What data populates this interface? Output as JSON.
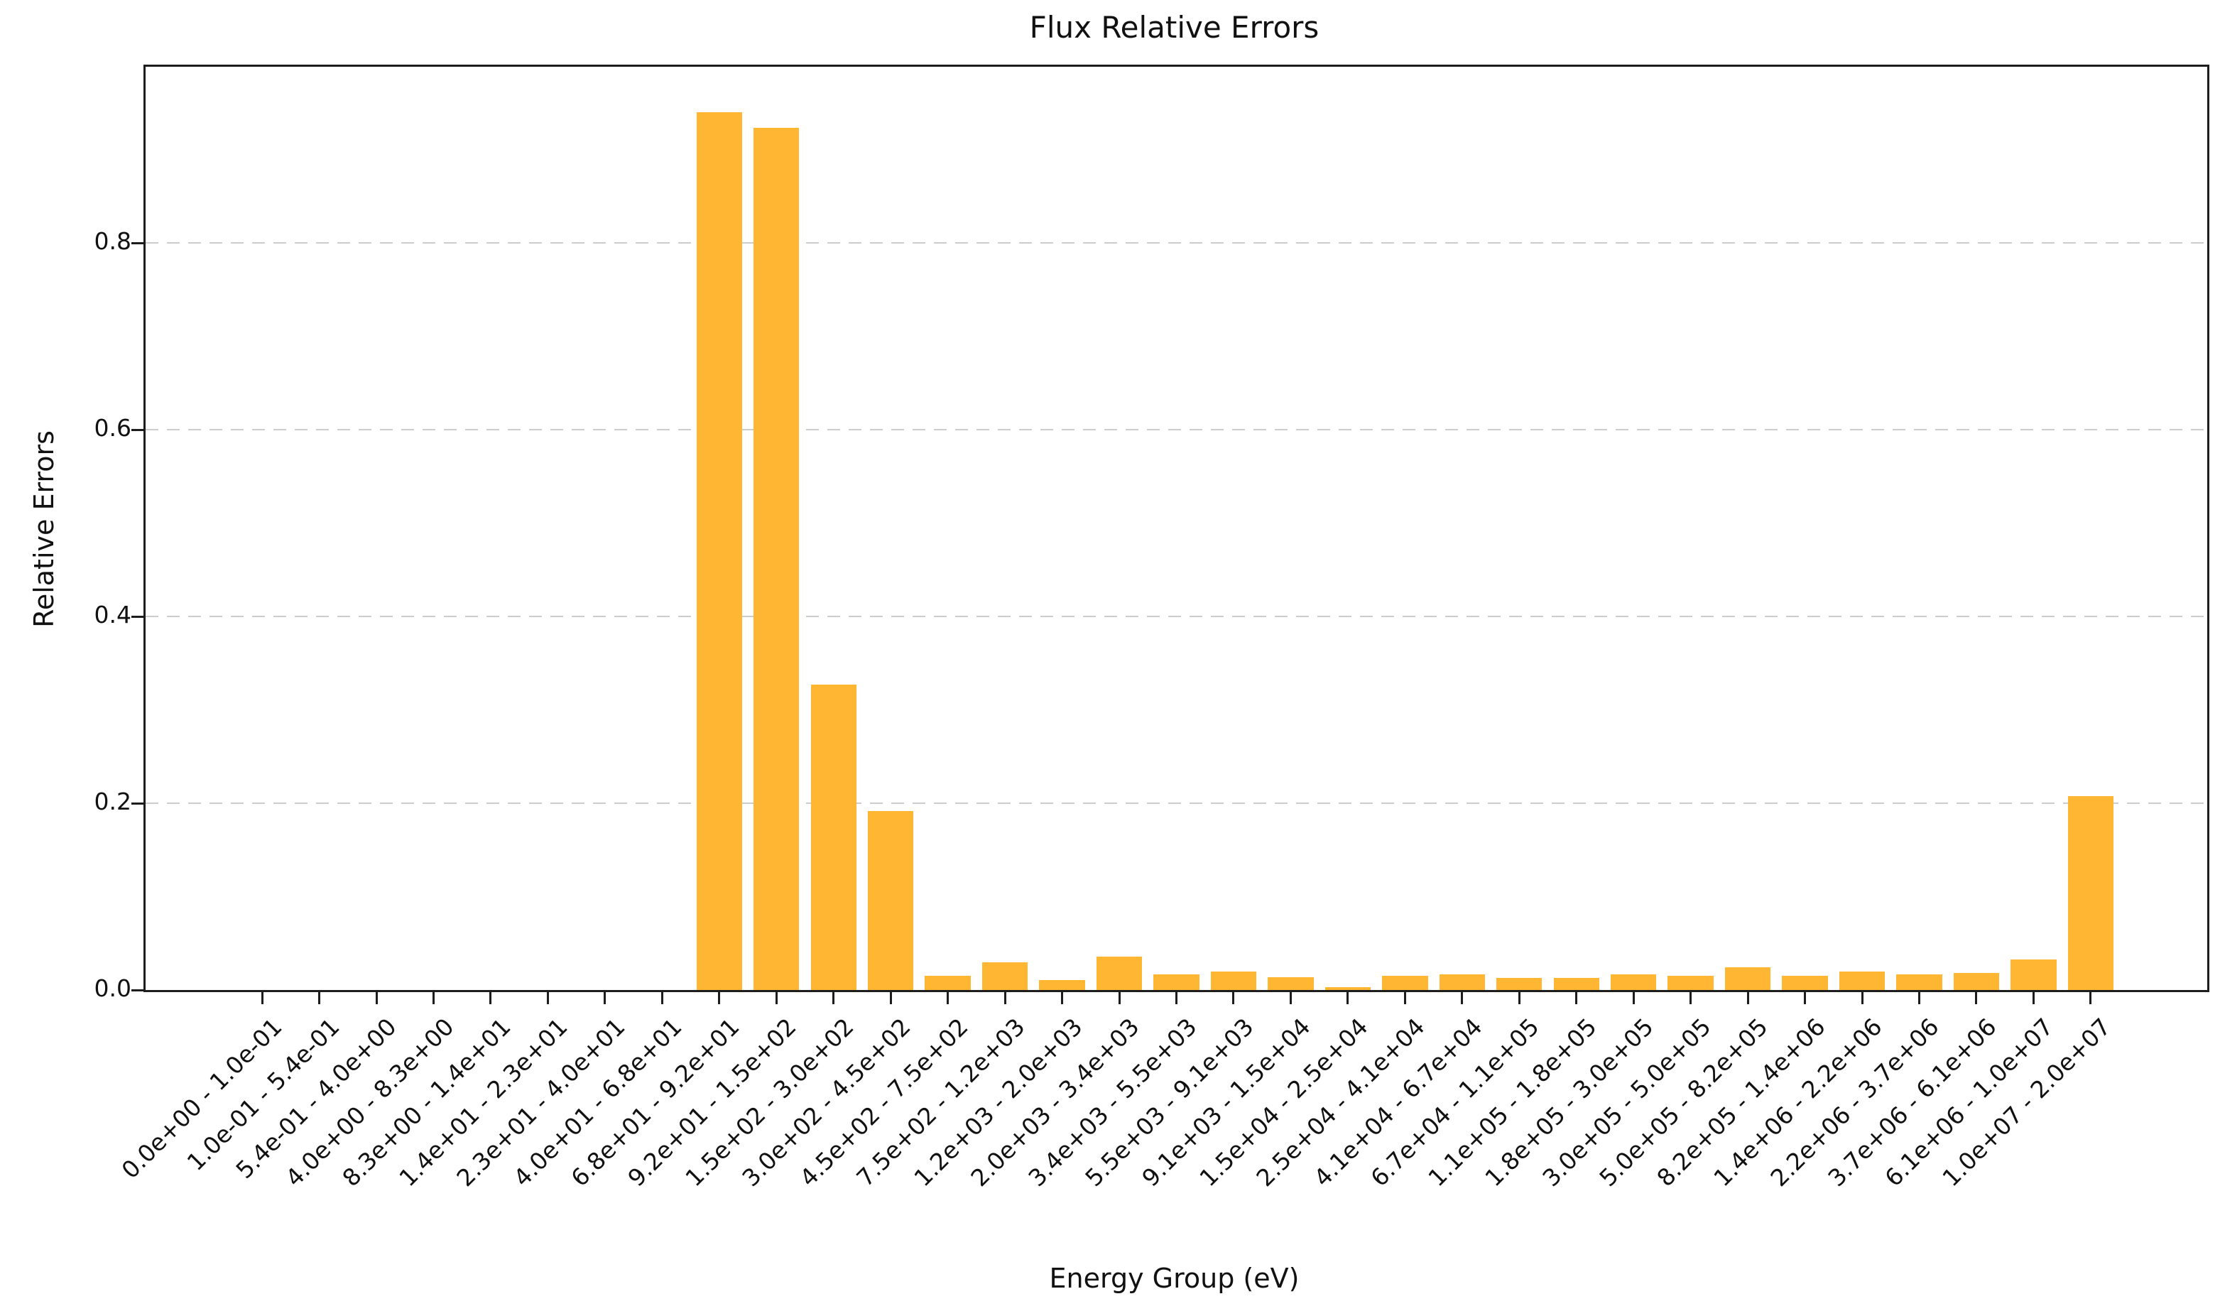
{
  "title": "Flux Relative Errors",
  "x_axis_label": "Energy Group (eV)",
  "y_axis_label": "Relative Errors",
  "chart_data": {
    "type": "bar",
    "title": "Flux Relative Errors",
    "xlabel": "Energy Group (eV)",
    "ylabel": "Relative Errors",
    "categories": [
      "0.0e+00 - 1.0e-01",
      "1.0e-01 - 5.4e-01",
      "5.4e-01 - 4.0e+00",
      "4.0e+00 - 8.3e+00",
      "8.3e+00 - 1.4e+01",
      "1.4e+01 - 2.3e+01",
      "2.3e+01 - 4.0e+01",
      "4.0e+01 - 6.8e+01",
      "6.8e+01 - 9.2e+01",
      "9.2e+01 - 1.5e+02",
      "1.5e+02 - 3.0e+02",
      "3.0e+02 - 4.5e+02",
      "4.5e+02 - 7.5e+02",
      "7.5e+02 - 1.2e+03",
      "1.2e+03 - 2.0e+03",
      "2.0e+03 - 3.4e+03",
      "3.4e+03 - 5.5e+03",
      "5.5e+03 - 9.1e+03",
      "9.1e+03 - 1.5e+04",
      "1.5e+04 - 2.5e+04",
      "2.5e+04 - 4.1e+04",
      "4.1e+04 - 6.7e+04",
      "6.7e+04 - 1.1e+05",
      "1.1e+05 - 1.8e+05",
      "1.8e+05 - 3.0e+05",
      "3.0e+05 - 5.0e+05",
      "5.0e+05 - 8.2e+05",
      "8.2e+05 - 1.4e+06",
      "1.4e+06 - 2.2e+06",
      "2.2e+06 - 3.7e+06",
      "3.7e+06 - 6.1e+06",
      "6.1e+06 - 1.0e+07",
      "1.0e+07 - 2.0e+07"
    ],
    "values": [
      0,
      0,
      0,
      0,
      0,
      0,
      0,
      0,
      0.94,
      0.923,
      0.327,
      0.192,
      0.015,
      0.03,
      0.011,
      0.036,
      0.017,
      0.02,
      0.014,
      0.003,
      0.015,
      0.017,
      0.013,
      0.013,
      0.017,
      0.015,
      0.024,
      0.015,
      0.02,
      0.017,
      0.018,
      0.033,
      0.208
    ],
    "yticks": [
      "0.0",
      "0.2",
      "0.4",
      "0.6",
      "0.8"
    ],
    "ylim": [
      0,
      0.9887
    ],
    "xtick_rotation": 45,
    "grid": "horizontal-dashed",
    "bar_color": "#FFB733",
    "legend": "none"
  }
}
